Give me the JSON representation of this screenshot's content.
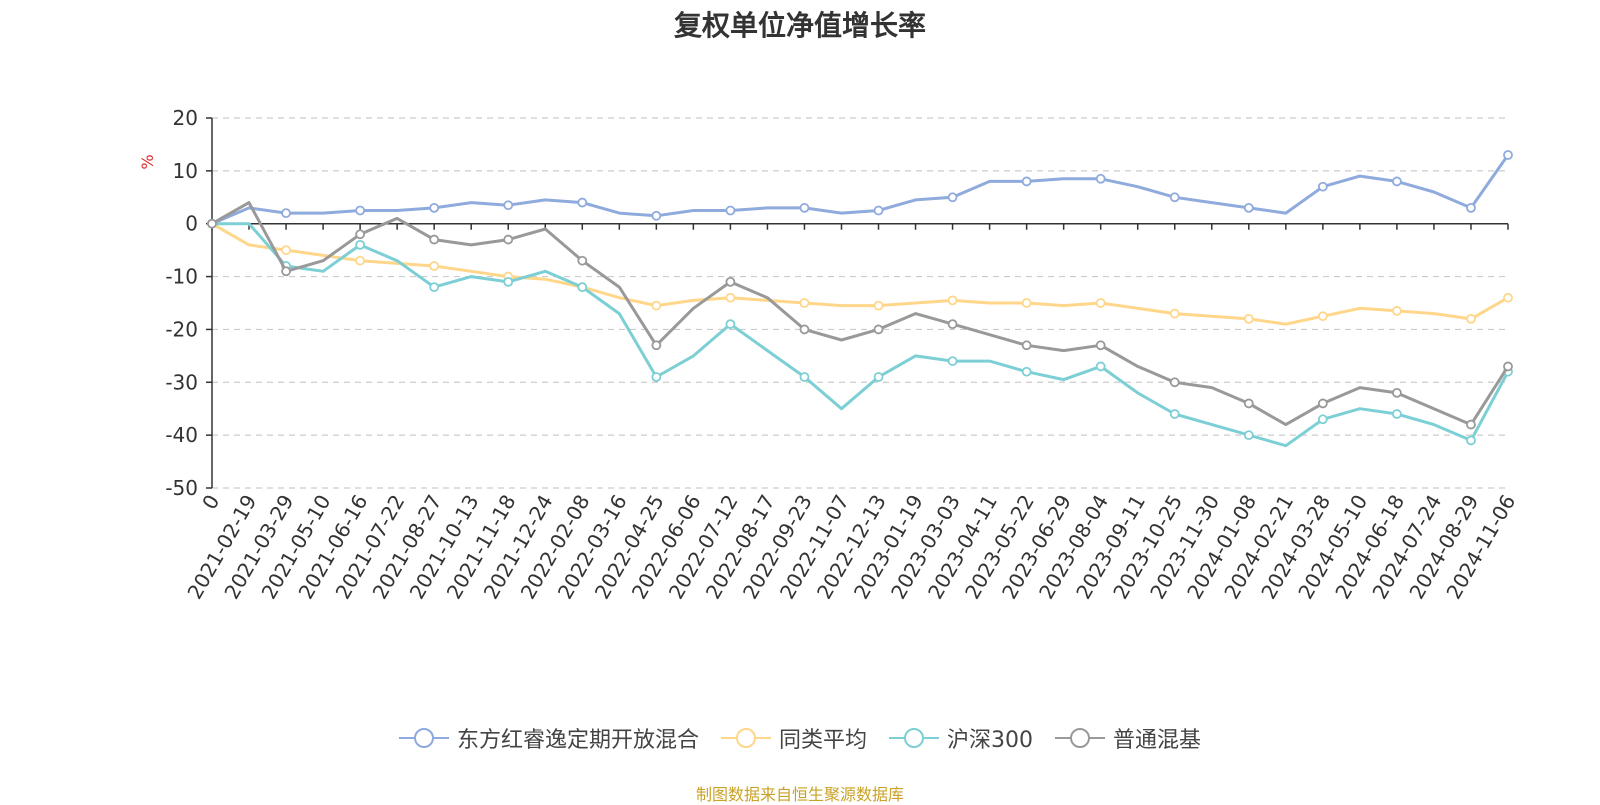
{
  "chart_data": {
    "type": "line",
    "title": "复权单位净值增长率",
    "ylabel": "%",
    "ylim": [
      -50,
      20
    ],
    "yticks": [
      20,
      10,
      0,
      -10,
      -20,
      -30,
      -40,
      -50
    ],
    "categories": [
      "0",
      "2021-02-19",
      "2021-03-29",
      "2021-05-10",
      "2021-06-16",
      "2021-07-22",
      "2021-08-27",
      "2021-10-13",
      "2021-11-18",
      "2021-12-24",
      "2022-02-08",
      "2022-03-16",
      "2022-04-25",
      "2022-06-06",
      "2022-07-12",
      "2022-08-17",
      "2022-09-23",
      "2022-11-07",
      "2022-12-13",
      "2023-01-19",
      "2023-03-03",
      "2023-04-11",
      "2023-05-22",
      "2023-06-29",
      "2023-08-04",
      "2023-09-11",
      "2023-10-25",
      "2023-11-30",
      "2024-01-08",
      "2024-02-21",
      "2024-03-28",
      "2024-05-10",
      "2024-06-18",
      "2024-07-24",
      "2024-08-29",
      "2024-11-06"
    ],
    "grid": true,
    "legend_position": "bottom",
    "series": [
      {
        "name": "东方红睿逸定期开放混合",
        "color": "#8faadc",
        "values": [
          0,
          3,
          2,
          2,
          2.5,
          2.5,
          3,
          4,
          3.5,
          4.5,
          4,
          2,
          1.5,
          2.5,
          2.5,
          3,
          3,
          2,
          2.5,
          4.5,
          5,
          8,
          8,
          8.5,
          8.5,
          7,
          5,
          4,
          3,
          2,
          7,
          9,
          8,
          6,
          3,
          13
        ]
      },
      {
        "name": "同类平均",
        "color": "#ffd68a",
        "values": [
          0,
          -4,
          -5,
          -6,
          -7,
          -7.5,
          -8,
          -9,
          -10,
          -10.5,
          -12,
          -14,
          -15.5,
          -14.5,
          -14,
          -14.5,
          -15,
          -15.5,
          -15.5,
          -15,
          -14.5,
          -15,
          -15,
          -15.5,
          -15,
          -16,
          -17,
          -17.5,
          -18,
          -19,
          -17.5,
          -16,
          -16.5,
          -17,
          -18,
          -14
        ]
      },
      {
        "name": "沪深300",
        "color": "#7ccfd4",
        "values": [
          0,
          0,
          -8,
          -9,
          -4,
          -7,
          -12,
          -10,
          -11,
          -9,
          -12,
          -17,
          -29,
          -25,
          -19,
          -24,
          -29,
          -35,
          -29,
          -25,
          -26,
          -26,
          -28,
          -29.5,
          -27,
          -32,
          -36,
          -38,
          -40,
          -42,
          -37,
          -35,
          -36,
          -38,
          -41,
          -28
        ]
      },
      {
        "name": "普通混基",
        "color": "#999999",
        "values": [
          0,
          4,
          -9,
          -7,
          -2,
          1,
          -3,
          -4,
          -3,
          -1,
          -7,
          -12,
          -23,
          -16,
          -11,
          -14,
          -20,
          -22,
          -20,
          -17,
          -19,
          -21,
          -23,
          -24,
          -23,
          -27,
          -30,
          -31,
          -34,
          -38,
          -34,
          -31,
          -32,
          -35,
          -38,
          -27
        ]
      }
    ]
  },
  "legend": {
    "items": [
      "东方红睿逸定期开放混合",
      "同类平均",
      "沪深300",
      "普通混基"
    ]
  },
  "source_note": "制图数据来自恒生聚源数据库"
}
